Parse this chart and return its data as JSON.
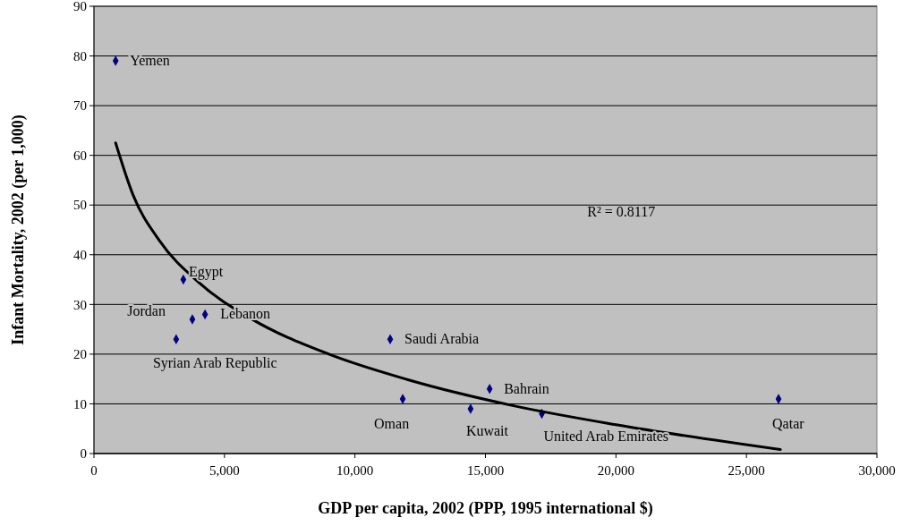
{
  "chart_data": {
    "type": "scatter",
    "xlabel": "GDP per capita, 2002 (PPP, 1995 international $)",
    "ylabel": "Infant Mortality, 2002 (per 1,000)",
    "xlim": [
      0,
      30000
    ],
    "xticks": [
      {
        "value": 0,
        "label": "0"
      },
      {
        "value": 5000,
        "label": "5,000"
      },
      {
        "value": 10000,
        "label": "10,000"
      },
      {
        "value": 15000,
        "label": "15,000"
      },
      {
        "value": 20000,
        "label": "20,000"
      },
      {
        "value": 25000,
        "label": "25,000"
      },
      {
        "value": 30000,
        "label": "30,000"
      }
    ],
    "ylim": [
      0,
      90
    ],
    "yticks": [
      0,
      10,
      20,
      30,
      40,
      50,
      60,
      70,
      80,
      90
    ],
    "grid": "y",
    "series": [
      {
        "type": "scatter",
        "marker": "diamond",
        "color": "#000080",
        "x": [
          830,
          3425,
          3770,
          4256,
          3150,
          11350,
          11830,
          14430,
          15160,
          17160,
          26230
        ],
        "values": [
          79,
          35,
          27,
          28,
          23,
          23,
          11,
          9,
          13,
          8,
          11
        ]
      },
      {
        "type": "line",
        "color": "#000000",
        "x": [
          830,
          1500,
          2500,
          4000,
          6000,
          9000,
          12000,
          16000,
          20000,
          26300
        ],
        "values": [
          62.5,
          52.0,
          42.9,
          34.5,
          27.2,
          20.0,
          14.9,
          9.7,
          5.8,
          0.8
        ]
      }
    ],
    "annotations": [
      {
        "text": "Yemen",
        "x": 830,
        "y": 79
      },
      {
        "text": "Egypt",
        "x": 3425,
        "y": 35
      },
      {
        "text": "Jordan",
        "x": 3770,
        "y": 27
      },
      {
        "text": "Lebanon",
        "x": 4256,
        "y": 28
      },
      {
        "text": "Syrian Arab Republic",
        "x": 3150,
        "y": 23
      },
      {
        "text": "Saudi Arabia",
        "x": 11350,
        "y": 23
      },
      {
        "text": "Oman",
        "x": 11830,
        "y": 11
      },
      {
        "text": "Kuwait",
        "x": 14430,
        "y": 9
      },
      {
        "text": "Bahrain",
        "x": 15160,
        "y": 13
      },
      {
        "text": "United Arab Emirates",
        "x": 17160,
        "y": 8
      },
      {
        "text": "Qatar",
        "x": 26230,
        "y": 11
      },
      "R² = 0.8117"
    ]
  }
}
